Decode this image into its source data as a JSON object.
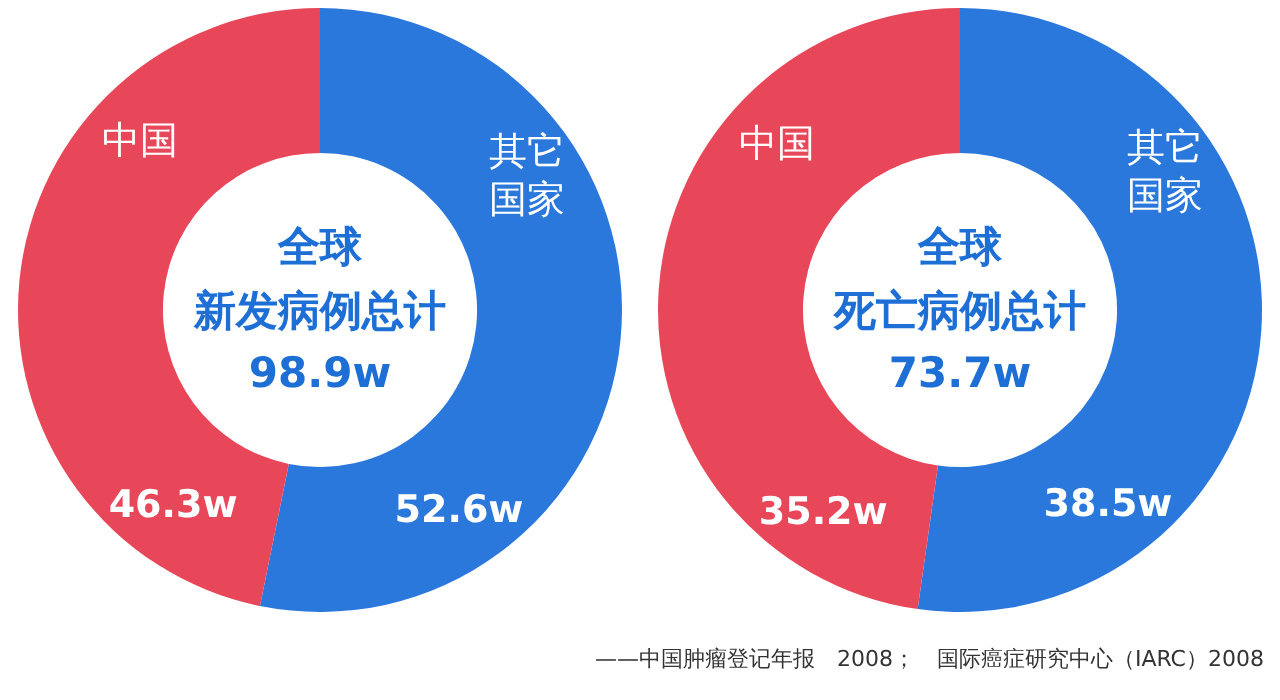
{
  "chart_data": [
    {
      "type": "donut",
      "title": "全球",
      "subtitle": "新发病例总计",
      "annotations": [
        "98.9w"
      ],
      "categories": [
        "其它国家",
        "中国"
      ],
      "values": [
        52.6,
        46.3
      ],
      "value_labels": [
        "52.6w",
        "46.3w"
      ],
      "colors": [
        "#2b78dc",
        "#e8475a"
      ]
    },
    {
      "type": "donut",
      "title": "全球",
      "subtitle": "死亡病例总计",
      "annotations": [
        "73.7w",
        "——中国肿瘤登记年报　2008；　国际癌症研究中心（IARC）2008"
      ],
      "categories": [
        "其它国家",
        "中国"
      ],
      "values": [
        38.5,
        35.2
      ],
      "value_labels": [
        "38.5w",
        "35.2w"
      ],
      "colors": [
        "#2b78dc",
        "#e8475a"
      ]
    }
  ]
}
